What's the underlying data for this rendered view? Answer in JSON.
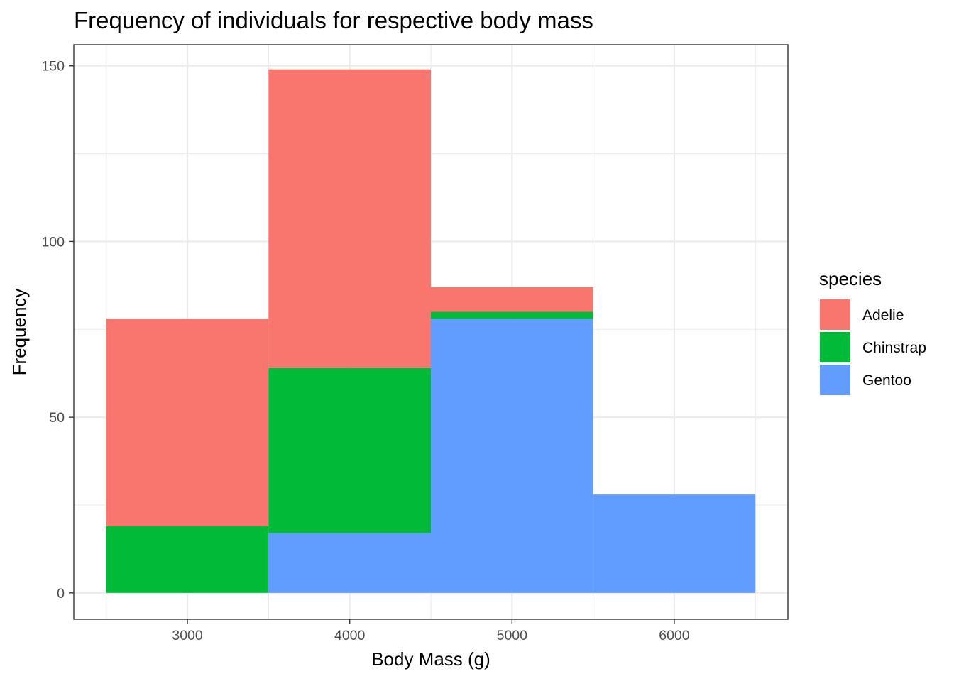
{
  "chart_data": {
    "type": "bar",
    "subtype": "stacked-histogram",
    "title": "Frequency of individuals for respective body mass",
    "xlabel": "Body Mass (g)",
    "ylabel": "Frequency",
    "xlim": [
      2300,
      6700
    ],
    "ylim": [
      -7.5,
      156
    ],
    "x_ticks": [
      3000,
      4000,
      5000,
      6000
    ],
    "x_tick_labels": [
      "3000",
      "4000",
      "5000",
      "6000"
    ],
    "y_ticks": [
      0,
      50,
      100,
      150
    ],
    "y_tick_labels": [
      "0",
      "50",
      "100",
      "150"
    ],
    "bins": [
      {
        "from": 2500,
        "to": 3500,
        "center": 3000
      },
      {
        "from": 3500,
        "to": 4500,
        "center": 4000
      },
      {
        "from": 4500,
        "to": 5500,
        "center": 5000
      },
      {
        "from": 5500,
        "to": 6500,
        "center": 6000
      }
    ],
    "stack_order_bottom_to_top": [
      "Gentoo",
      "Chinstrap",
      "Adelie"
    ],
    "series": [
      {
        "name": "Adelie",
        "color": "#F8766D",
        "values": [
          59,
          85,
          7,
          0
        ]
      },
      {
        "name": "Chinstrap",
        "color": "#00BA38",
        "values": [
          19,
          47,
          2,
          0
        ]
      },
      {
        "name": "Gentoo",
        "color": "#619CFF",
        "values": [
          0,
          17,
          78,
          28
        ]
      }
    ],
    "grid": true,
    "theme": "bw",
    "legend": {
      "title": "species",
      "position": "right",
      "entries": [
        "Adelie",
        "Chinstrap",
        "Gentoo"
      ]
    }
  }
}
